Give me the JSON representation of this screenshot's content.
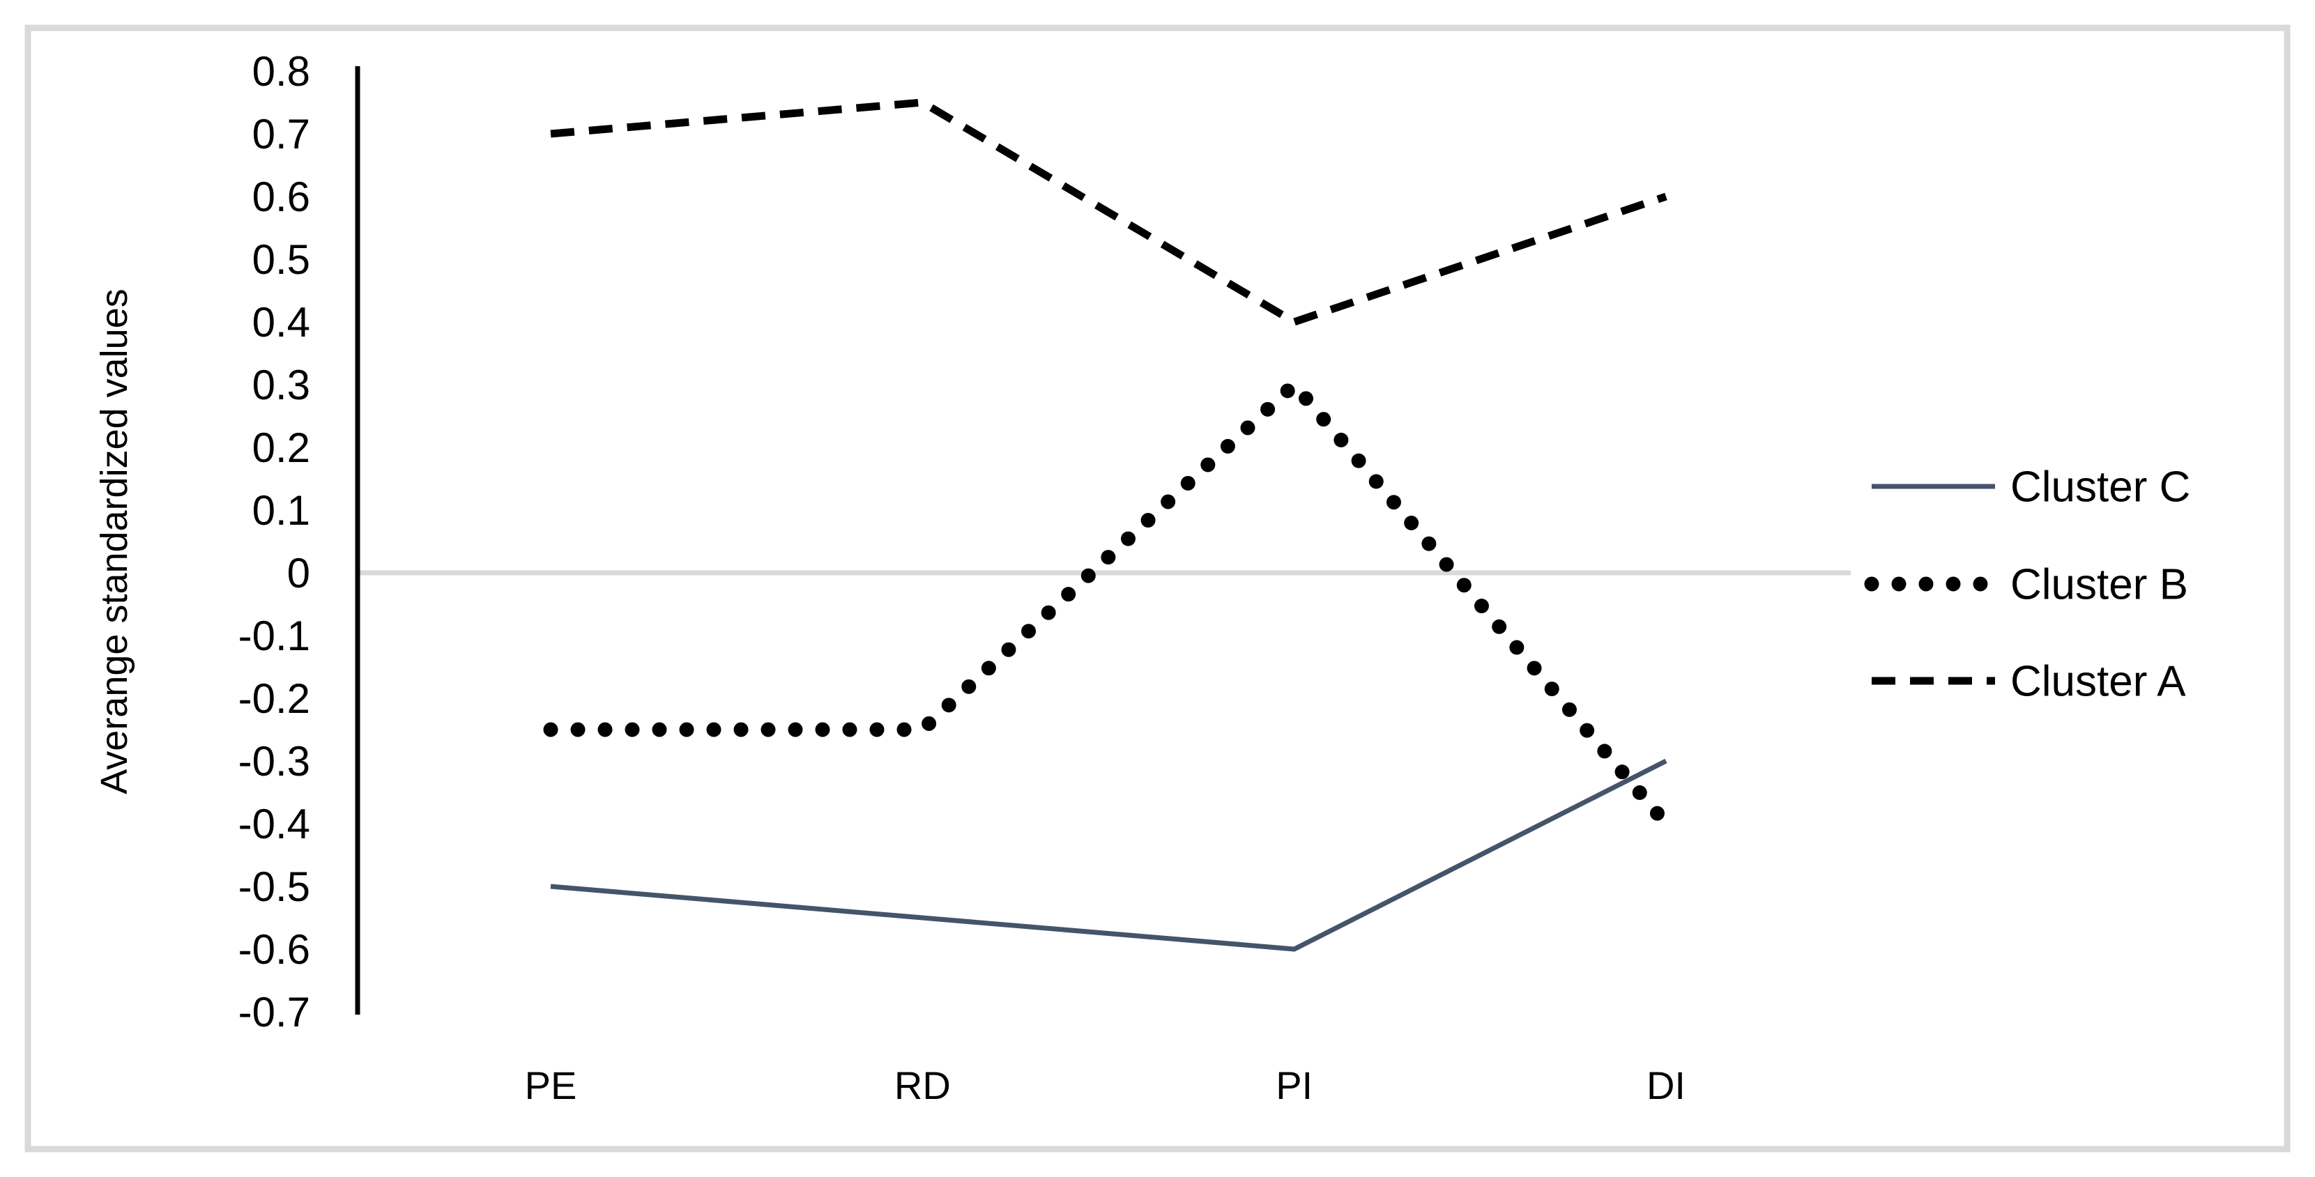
{
  "figure": {
    "background": "#ffffff",
    "border_color": "#d9d9d9"
  },
  "chart_data": {
    "type": "line",
    "title": "",
    "xlabel": "",
    "ylabel": "Averange standardized values",
    "categories": [
      "PE",
      "RD",
      "PI",
      "DI"
    ],
    "series": [
      {
        "name": "Cluster A",
        "style": "dashed",
        "color": "#000000",
        "values": [
          0.7,
          0.75,
          0.4,
          0.6
        ]
      },
      {
        "name": "Cluster B",
        "style": "dotted",
        "color": "#000000",
        "values": [
          -0.25,
          -0.25,
          0.3,
          -0.4
        ]
      },
      {
        "name": "Cluster C",
        "style": "solid",
        "color": "#44546a",
        "values": [
          -0.5,
          -0.55,
          -0.6,
          -0.3
        ]
      }
    ],
    "ylim": [
      -0.7,
      0.8
    ],
    "ytick_step": 0.1,
    "yticks": [
      "0.8",
      "0.7",
      "0.6",
      "0.5",
      "0.4",
      "0.3",
      "0.2",
      "0.1",
      "0",
      "-0.1",
      "-0.2",
      "-0.3",
      "-0.4",
      "-0.5",
      "-0.6",
      "-0.7"
    ],
    "grid": "zero-line-only",
    "gridline_color": "#d9d9d9",
    "axis_color": "#000000",
    "text_color": "#000000",
    "legend_position": "right",
    "legend_order": [
      "Cluster C",
      "Cluster B",
      "Cluster A"
    ]
  }
}
